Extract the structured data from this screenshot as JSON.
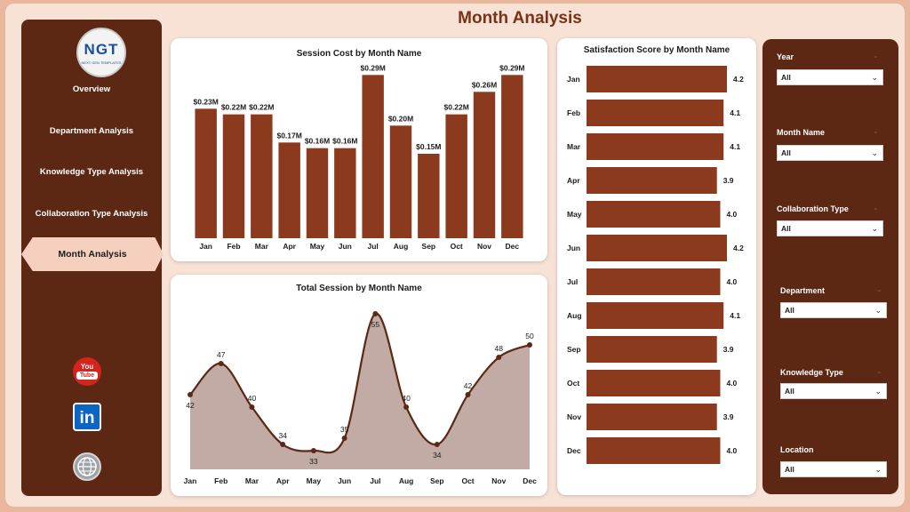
{
  "header": {
    "title": "Month Analysis"
  },
  "logo": {
    "main": "NGT",
    "sub": "NEXT GEN TEMPLATES"
  },
  "sidebar": {
    "items": [
      {
        "label": "Overview"
      },
      {
        "label": "Department Analysis"
      },
      {
        "label": "Knowledge Type Analysis"
      },
      {
        "label": "Collaboration Type Analysis"
      },
      {
        "label": "Month Analysis",
        "active": true
      }
    ],
    "social": [
      {
        "icon": "youtube-icon",
        "label_top": "You",
        "label_bottom": "Tube"
      },
      {
        "icon": "linkedin-icon",
        "label": "in"
      },
      {
        "icon": "globe-icon"
      }
    ]
  },
  "filters": [
    {
      "label": "Year",
      "value": "All"
    },
    {
      "label": "Month Name",
      "value": "All"
    },
    {
      "label": "Collaboration Type",
      "value": "All"
    },
    {
      "label": "Department",
      "value": "All"
    },
    {
      "label": "Knowledge Type",
      "value": "All"
    },
    {
      "label": "Location",
      "value": "All"
    }
  ],
  "colors": {
    "bar": "#8b3a1e",
    "sidebar": "#5c2814",
    "area_fill": "#c1aba4",
    "line": "#5c2814"
  },
  "chart_data": [
    {
      "type": "bar",
      "title": "Session Cost by Month Name",
      "categories": [
        "Jan",
        "Feb",
        "Mar",
        "Apr",
        "May",
        "Jun",
        "Jul",
        "Aug",
        "Sep",
        "Oct",
        "Nov",
        "Dec"
      ],
      "values": [
        0.23,
        0.22,
        0.22,
        0.17,
        0.16,
        0.16,
        0.29,
        0.2,
        0.15,
        0.22,
        0.26,
        0.29
      ],
      "labels": [
        "$0.23M",
        "$0.22M",
        "$0.22M",
        "$0.17M",
        "$0.16M",
        "$0.16M",
        "$0.29M",
        "$0.20M",
        "$0.15M",
        "$0.22M",
        "$0.26M",
        "$0.29M"
      ],
      "ylim": [
        0,
        0.3
      ]
    },
    {
      "type": "area",
      "title": "Total Session by Month Name",
      "categories": [
        "Jan",
        "Feb",
        "Mar",
        "Apr",
        "May",
        "Jun",
        "Jul",
        "Aug",
        "Sep",
        "Oct",
        "Nov",
        "Dec"
      ],
      "values": [
        42,
        47,
        40,
        34,
        33,
        35,
        55,
        40,
        34,
        42,
        48,
        50
      ],
      "ylim": [
        30,
        56
      ]
    },
    {
      "type": "bar",
      "orientation": "horizontal",
      "title": "Satisfaction Score by Month Name",
      "categories": [
        "Jan",
        "Feb",
        "Mar",
        "Apr",
        "May",
        "Jun",
        "Jul",
        "Aug",
        "Sep",
        "Oct",
        "Nov",
        "Dec"
      ],
      "values": [
        4.2,
        4.1,
        4.1,
        3.9,
        4.0,
        4.2,
        4.0,
        4.1,
        3.9,
        4.0,
        3.9,
        4.0
      ],
      "labels": [
        "4.2",
        "4.1",
        "4.1",
        "3.9",
        "4.0",
        "4.2",
        "4.0",
        "4.1",
        "3.9",
        "4.0",
        "3.9",
        "4.0"
      ],
      "xlim": [
        0,
        4.2
      ]
    }
  ]
}
